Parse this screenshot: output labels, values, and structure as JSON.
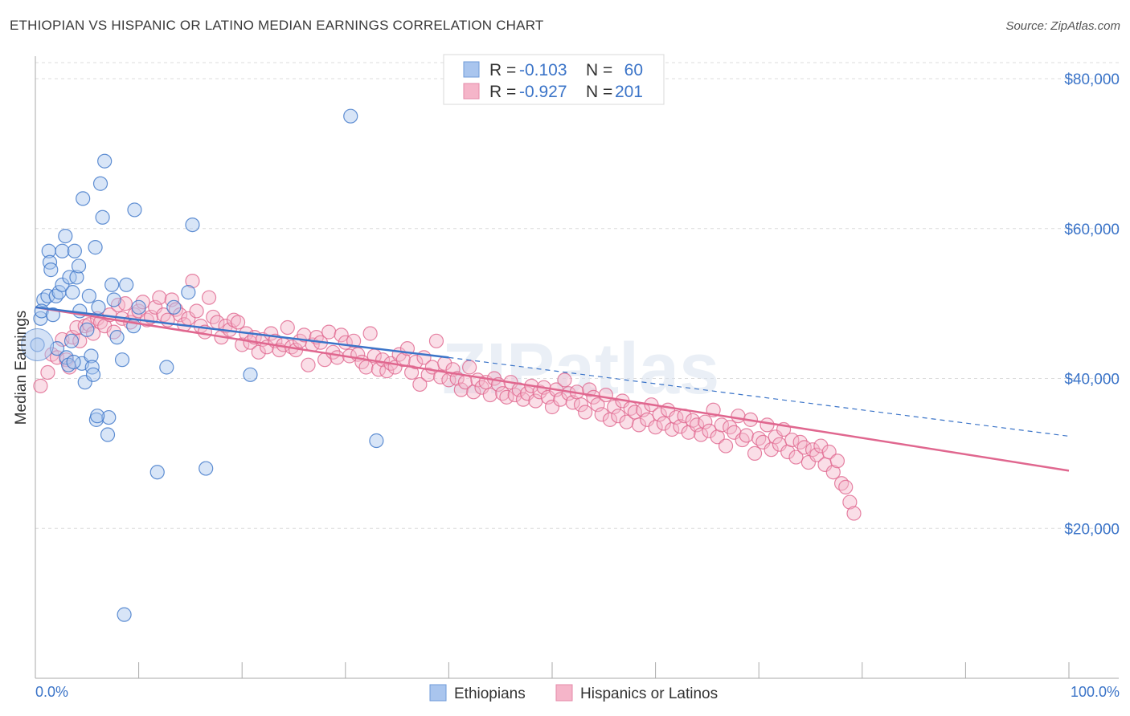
{
  "title": "ETHIOPIAN VS HISPANIC OR LATINO MEDIAN EARNINGS CORRELATION CHART",
  "source": "Source: ZipAtlas.com",
  "watermark": "ZIPatlas",
  "colors": {
    "blue": "#3b74c8",
    "blue_fill": "#a9c5ee",
    "pink": "#e0678f",
    "pink_fill": "#f5b5c9"
  },
  "legend": {
    "rows": [
      {
        "r_label": "R =",
        "r_value": "-0.103",
        "n_label": "N =",
        "n_value": "60"
      },
      {
        "r_label": "R =",
        "r_value": "-0.927",
        "n_label": "N =",
        "n_value": "201"
      }
    ]
  },
  "chart_data": {
    "type": "scatter",
    "title": "ETHIOPIAN VS HISPANIC OR LATINO MEDIAN EARNINGS CORRELATION CHART",
    "xlabel": "",
    "ylabel": "Median Earnings",
    "xlim": [
      0,
      100
    ],
    "ylim": [
      0,
      83000
    ],
    "x_tick_labels": [
      "0.0%",
      "100.0%"
    ],
    "y_ticks": [
      20000,
      40000,
      60000,
      80000
    ],
    "y_tick_labels": [
      "$20,000",
      "$40,000",
      "$60,000",
      "$80,000"
    ],
    "grid": true,
    "legend_placement": "top-center",
    "series": [
      {
        "name": "Ethiopians",
        "color": "#3b74c8",
        "trend": {
          "x": [
            0,
            40
          ],
          "y": [
            49500,
            42800
          ],
          "dashed_to": [
            100,
            32300
          ]
        },
        "points": [
          [
            0.2,
            44500
          ],
          [
            0.5,
            48000
          ],
          [
            0.8,
            50500
          ],
          [
            0.6,
            49000
          ],
          [
            1.2,
            51000
          ],
          [
            1.3,
            57000
          ],
          [
            1.4,
            55500
          ],
          [
            1.5,
            54500
          ],
          [
            1.7,
            48500
          ],
          [
            2.0,
            51000
          ],
          [
            2.1,
            44000
          ],
          [
            2.3,
            51500
          ],
          [
            2.6,
            57000
          ],
          [
            2.6,
            52500
          ],
          [
            2.9,
            59000
          ],
          [
            3.0,
            42800
          ],
          [
            3.2,
            41800
          ],
          [
            3.3,
            53500
          ],
          [
            3.5,
            45000
          ],
          [
            3.6,
            51500
          ],
          [
            3.8,
            57000
          ],
          [
            4.0,
            53500
          ],
          [
            4.2,
            55000
          ],
          [
            4.5,
            42000
          ],
          [
            4.6,
            64000
          ],
          [
            4.8,
            39500
          ],
          [
            5.0,
            46500
          ],
          [
            5.2,
            51000
          ],
          [
            5.4,
            43000
          ],
          [
            5.5,
            41500
          ],
          [
            5.6,
            40500
          ],
          [
            5.8,
            57500
          ],
          [
            5.9,
            34500
          ],
          [
            6.1,
            49500
          ],
          [
            6.3,
            66000
          ],
          [
            6.5,
            61500
          ],
          [
            6.7,
            69000
          ],
          [
            7.0,
            32500
          ],
          [
            7.1,
            34800
          ],
          [
            7.4,
            52500
          ],
          [
            7.6,
            50500
          ],
          [
            7.9,
            45500
          ],
          [
            8.4,
            42500
          ],
          [
            8.6,
            8500
          ],
          [
            8.8,
            52500
          ],
          [
            9.5,
            47000
          ],
          [
            9.6,
            62500
          ],
          [
            10.0,
            49500
          ],
          [
            11.8,
            27500
          ],
          [
            12.7,
            41500
          ],
          [
            13.4,
            49500
          ],
          [
            14.8,
            51500
          ],
          [
            15.2,
            60500
          ],
          [
            16.5,
            28000
          ],
          [
            20.8,
            40500
          ],
          [
            30.5,
            75000
          ],
          [
            33.0,
            31700
          ],
          [
            6.0,
            35000
          ],
          [
            4.3,
            49000
          ],
          [
            3.7,
            42200
          ]
        ]
      },
      {
        "name": "Hispanics or Latinos",
        "color": "#e0678f",
        "trend": {
          "x": [
            0,
            100
          ],
          "y": [
            49500,
            27700
          ]
        },
        "points": [
          [
            0.5,
            39000
          ],
          [
            1.2,
            40800
          ],
          [
            1.6,
            43200
          ],
          [
            2.1,
            42800
          ],
          [
            2.6,
            45200
          ],
          [
            3.0,
            42500
          ],
          [
            3.3,
            41500
          ],
          [
            3.6,
            45500
          ],
          [
            4.0,
            46800
          ],
          [
            4.3,
            45000
          ],
          [
            4.8,
            47000
          ],
          [
            5.2,
            47200
          ],
          [
            5.6,
            46000
          ],
          [
            6.0,
            48000
          ],
          [
            6.3,
            47500
          ],
          [
            6.7,
            47000
          ],
          [
            7.2,
            48500
          ],
          [
            7.6,
            46200
          ],
          [
            8.0,
            49800
          ],
          [
            8.4,
            48000
          ],
          [
            8.7,
            50000
          ],
          [
            9.2,
            47500
          ],
          [
            9.6,
            48500
          ],
          [
            10.0,
            49000
          ],
          [
            10.4,
            50200
          ],
          [
            10.8,
            47800
          ],
          [
            11.2,
            48200
          ],
          [
            11.6,
            49500
          ],
          [
            12.0,
            50800
          ],
          [
            12.4,
            48500
          ],
          [
            12.8,
            47800
          ],
          [
            13.2,
            50500
          ],
          [
            13.6,
            49200
          ],
          [
            14.0,
            48500
          ],
          [
            14.4,
            47200
          ],
          [
            14.8,
            48000
          ],
          [
            15.2,
            53000
          ],
          [
            15.6,
            49000
          ],
          [
            16.0,
            47000
          ],
          [
            16.4,
            46200
          ],
          [
            16.8,
            50800
          ],
          [
            17.2,
            48200
          ],
          [
            17.6,
            47500
          ],
          [
            18.0,
            45500
          ],
          [
            18.4,
            47000
          ],
          [
            18.8,
            46500
          ],
          [
            19.2,
            47800
          ],
          [
            19.6,
            47500
          ],
          [
            20.0,
            44500
          ],
          [
            20.4,
            46000
          ],
          [
            20.8,
            44800
          ],
          [
            21.2,
            45500
          ],
          [
            21.6,
            43500
          ],
          [
            22.0,
            45200
          ],
          [
            22.4,
            44200
          ],
          [
            22.8,
            46000
          ],
          [
            23.2,
            45000
          ],
          [
            23.6,
            43800
          ],
          [
            24.0,
            44500
          ],
          [
            24.4,
            46800
          ],
          [
            24.8,
            44200
          ],
          [
            25.2,
            43800
          ],
          [
            25.6,
            45000
          ],
          [
            26.0,
            45800
          ],
          [
            26.4,
            41800
          ],
          [
            26.8,
            44500
          ],
          [
            27.2,
            45500
          ],
          [
            27.6,
            44800
          ],
          [
            28.0,
            42500
          ],
          [
            28.4,
            46200
          ],
          [
            28.8,
            43500
          ],
          [
            29.2,
            42800
          ],
          [
            29.6,
            45800
          ],
          [
            30.0,
            44800
          ],
          [
            30.4,
            43000
          ],
          [
            30.8,
            45000
          ],
          [
            31.2,
            43200
          ],
          [
            31.6,
            42200
          ],
          [
            32.0,
            41500
          ],
          [
            32.4,
            46000
          ],
          [
            32.8,
            43000
          ],
          [
            33.2,
            41200
          ],
          [
            33.6,
            42500
          ],
          [
            34.0,
            41000
          ],
          [
            34.4,
            42000
          ],
          [
            34.8,
            41500
          ],
          [
            35.2,
            43200
          ],
          [
            35.6,
            42500
          ],
          [
            36.0,
            44000
          ],
          [
            36.4,
            40800
          ],
          [
            36.8,
            42200
          ],
          [
            37.2,
            39200
          ],
          [
            37.6,
            42800
          ],
          [
            38.0,
            40500
          ],
          [
            38.4,
            41500
          ],
          [
            38.8,
            45000
          ],
          [
            39.2,
            40200
          ],
          [
            39.6,
            42000
          ],
          [
            40.0,
            39800
          ],
          [
            40.4,
            41200
          ],
          [
            40.8,
            40000
          ],
          [
            41.2,
            38500
          ],
          [
            41.6,
            39500
          ],
          [
            42.0,
            41500
          ],
          [
            42.4,
            38200
          ],
          [
            42.8,
            39800
          ],
          [
            43.2,
            38800
          ],
          [
            43.6,
            39500
          ],
          [
            44.0,
            37800
          ],
          [
            44.4,
            40000
          ],
          [
            44.8,
            39200
          ],
          [
            45.2,
            38000
          ],
          [
            45.6,
            37500
          ],
          [
            46.0,
            39500
          ],
          [
            46.4,
            37800
          ],
          [
            46.8,
            38500
          ],
          [
            47.2,
            37200
          ],
          [
            47.6,
            38000
          ],
          [
            48.0,
            39000
          ],
          [
            48.4,
            37000
          ],
          [
            48.8,
            38200
          ],
          [
            49.2,
            38800
          ],
          [
            49.6,
            37500
          ],
          [
            50.0,
            36200
          ],
          [
            50.4,
            38500
          ],
          [
            50.8,
            37200
          ],
          [
            51.2,
            39800
          ],
          [
            51.6,
            38000
          ],
          [
            52.0,
            36800
          ],
          [
            52.4,
            38200
          ],
          [
            52.8,
            36500
          ],
          [
            53.2,
            35500
          ],
          [
            53.6,
            38500
          ],
          [
            54.0,
            37500
          ],
          [
            54.4,
            36500
          ],
          [
            54.8,
            35200
          ],
          [
            55.2,
            37800
          ],
          [
            55.6,
            34500
          ],
          [
            56.0,
            36200
          ],
          [
            56.4,
            35000
          ],
          [
            56.8,
            37000
          ],
          [
            57.2,
            34200
          ],
          [
            57.6,
            36000
          ],
          [
            58.0,
            35500
          ],
          [
            58.4,
            33800
          ],
          [
            58.8,
            35800
          ],
          [
            59.2,
            34500
          ],
          [
            59.6,
            36500
          ],
          [
            60.0,
            33500
          ],
          [
            60.4,
            35200
          ],
          [
            60.8,
            34000
          ],
          [
            61.2,
            35800
          ],
          [
            61.6,
            33200
          ],
          [
            62.0,
            34800
          ],
          [
            62.4,
            33600
          ],
          [
            62.8,
            35000
          ],
          [
            63.2,
            32800
          ],
          [
            63.6,
            34400
          ],
          [
            64.0,
            33800
          ],
          [
            64.4,
            32500
          ],
          [
            64.8,
            34200
          ],
          [
            65.2,
            33000
          ],
          [
            65.6,
            35800
          ],
          [
            66.0,
            32200
          ],
          [
            66.4,
            33800
          ],
          [
            66.8,
            31000
          ],
          [
            67.2,
            33500
          ],
          [
            67.6,
            32800
          ],
          [
            68.0,
            35000
          ],
          [
            68.4,
            31800
          ],
          [
            68.8,
            32400
          ],
          [
            69.2,
            34500
          ],
          [
            69.6,
            30000
          ],
          [
            70.0,
            32000
          ],
          [
            70.4,
            31500
          ],
          [
            70.8,
            33800
          ],
          [
            71.2,
            30500
          ],
          [
            71.6,
            32200
          ],
          [
            72.0,
            31200
          ],
          [
            72.4,
            33200
          ],
          [
            72.8,
            30200
          ],
          [
            73.2,
            31800
          ],
          [
            73.6,
            29500
          ],
          [
            74.0,
            31500
          ],
          [
            74.4,
            30800
          ],
          [
            74.8,
            28800
          ],
          [
            75.2,
            30500
          ],
          [
            75.6,
            29800
          ],
          [
            76.0,
            31000
          ],
          [
            76.4,
            28500
          ],
          [
            76.8,
            30200
          ],
          [
            77.2,
            27500
          ],
          [
            77.6,
            29000
          ],
          [
            78.0,
            26000
          ],
          [
            78.4,
            25500
          ],
          [
            78.8,
            23500
          ],
          [
            79.2,
            22000
          ]
        ]
      }
    ]
  }
}
